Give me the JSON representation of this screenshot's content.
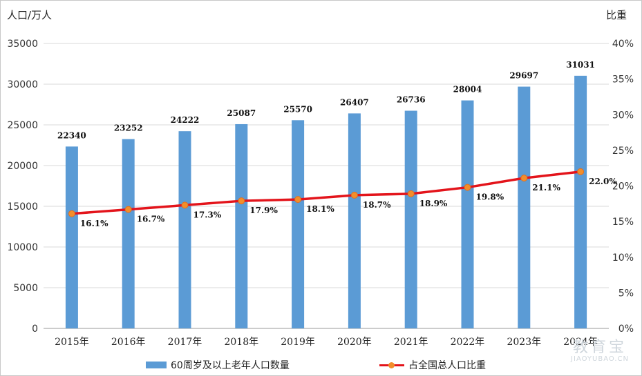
{
  "chart_data": {
    "type": "bar",
    "ylabel_left": "人口/万人",
    "ylabel_right": "比重",
    "categories": [
      "2015年",
      "2016年",
      "2017年",
      "2018年",
      "2019年",
      "2020年",
      "2021年",
      "2022年",
      "2023年",
      "2024年"
    ],
    "series": [
      {
        "name": "60周岁及以上老年人口数量",
        "type": "bar",
        "axis": "left",
        "values": [
          22340,
          23252,
          24222,
          25087,
          25570,
          26407,
          26736,
          28004,
          29697,
          31031
        ],
        "color": "#5b9bd5"
      },
      {
        "name": "占全国总人口比重",
        "type": "line",
        "axis": "right",
        "values": [
          16.1,
          16.7,
          17.3,
          17.9,
          18.1,
          18.7,
          18.9,
          19.8,
          21.1,
          22.0
        ],
        "labels": [
          "16.1%",
          "16.7%",
          "17.3%",
          "17.9%",
          "18.1%",
          "18.7%",
          "18.9%",
          "19.8%",
          "21.1%",
          "22.0%"
        ],
        "color": "#e3141b",
        "marker_color": "#f28e2b"
      }
    ],
    "ylim_left": [
      0,
      35000
    ],
    "yticks_left": [
      "0",
      "5000",
      "10000",
      "15000",
      "20000",
      "25000",
      "30000",
      "35000"
    ],
    "ylim_right": [
      0,
      40
    ],
    "yticks_right": [
      "0%",
      "5%",
      "10%",
      "15%",
      "20%",
      "25%",
      "30%",
      "35%",
      "40%"
    ],
    "grid": true,
    "legend_position": "bottom"
  },
  "watermark": {
    "main": "教育宝",
    "sub": "JIAOYUBAO.CN"
  }
}
